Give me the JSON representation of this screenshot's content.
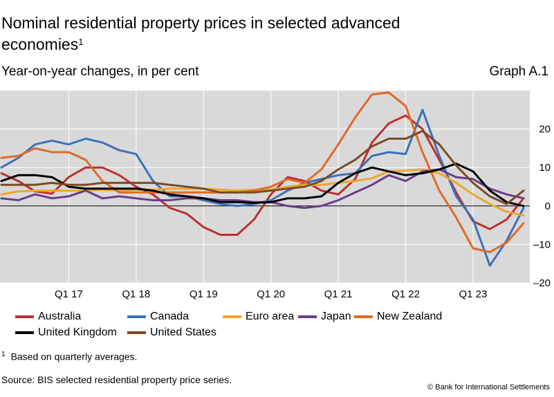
{
  "title": "Nominal residential property prices in selected advanced economies",
  "title_footnote_marker": "1",
  "subtitle": "Year-on-year changes, in per cent",
  "graph_id": "Graph A.1",
  "footnote_marker": "1",
  "footnote": "Based on quarterly averages.",
  "source": "Source: BIS selected residential property price series.",
  "copyright": "© Bank for International Settlements",
  "chart_data": {
    "type": "line",
    "x": [
      "Q1 16",
      "Q2 16",
      "Q3 16",
      "Q4 16",
      "Q1 17",
      "Q2 17",
      "Q3 17",
      "Q4 17",
      "Q1 18",
      "Q2 18",
      "Q3 18",
      "Q4 18",
      "Q1 19",
      "Q2 19",
      "Q3 19",
      "Q4 19",
      "Q1 20",
      "Q2 20",
      "Q3 20",
      "Q4 20",
      "Q1 21",
      "Q2 21",
      "Q3 21",
      "Q4 21",
      "Q1 22",
      "Q2 22",
      "Q3 22",
      "Q4 22",
      "Q1 23",
      "Q2 23",
      "Q3 23",
      "Q4 23"
    ],
    "xtick_labels": [
      "Q1 17",
      "Q1 18",
      "Q1 19",
      "Q1 20",
      "Q1 21",
      "Q1 22",
      "Q1 23"
    ],
    "xtick_positions": [
      4,
      8,
      12,
      16,
      20,
      24,
      28
    ],
    "yticks": [
      20,
      10,
      0,
      -10,
      -20
    ],
    "ylim": [
      -20,
      30
    ],
    "grid": true,
    "legend_position": "bottom",
    "series": [
      {
        "name": "Australia",
        "color": "#bf2f2f",
        "values": [
          8.5,
          6.5,
          3.8,
          3.2,
          7.5,
          10,
          10,
          8,
          5,
          3,
          -0.5,
          -2,
          -5.5,
          -7.5,
          -7.5,
          -3.5,
          3,
          7.5,
          6.5,
          4,
          3,
          7,
          16.5,
          21.5,
          23.5,
          20,
          12,
          3.5,
          -4,
          -6,
          -3.5,
          2
        ]
      },
      {
        "name": "Canada",
        "color": "#3a72b8",
        "values": [
          10,
          12.5,
          16,
          17,
          16,
          17.5,
          16.5,
          14.5,
          13.5,
          6.5,
          2.5,
          2.5,
          1.5,
          0.5,
          0,
          0.5,
          1.5,
          4,
          6,
          7,
          8,
          8.5,
          13,
          14,
          13.5,
          25,
          13,
          2.5,
          -3.5,
          -15.5,
          -9,
          -0.5
        ]
      },
      {
        "name": "Euro area",
        "color": "#f0a52a",
        "values": [
          3,
          3.8,
          4,
          4,
          4,
          4,
          4.2,
          4,
          4.2,
          4.2,
          4.5,
          4.5,
          4.5,
          4.2,
          4,
          4.2,
          4.2,
          5,
          5.5,
          5.5,
          6,
          6.5,
          7.2,
          9,
          9.2,
          9.5,
          8.5,
          6,
          3,
          0.5,
          -1.5,
          -2.5
        ]
      },
      {
        "name": "Japan",
        "color": "#6b3c8c",
        "values": [
          2,
          1.5,
          3,
          2,
          2.5,
          4,
          2,
          2.5,
          2,
          1.5,
          1.5,
          2,
          2,
          1.5,
          1.5,
          1,
          1,
          0,
          -0.5,
          0,
          1.5,
          3.5,
          5.5,
          8,
          6.5,
          9,
          9.5,
          7.5,
          7,
          4.5,
          3,
          2
        ]
      },
      {
        "name": "New Zealand",
        "color": "#e06a25",
        "values": [
          12.5,
          13,
          15,
          14,
          14,
          12,
          6.5,
          3.5,
          3.5,
          3.5,
          3.5,
          3.5,
          3.5,
          3.5,
          3.5,
          4,
          5,
          7,
          6,
          9.5,
          16,
          23,
          29,
          29.5,
          26,
          14,
          4,
          -3,
          -11,
          -12,
          -9.5,
          -4.5
        ]
      },
      {
        "name": "United Kingdom",
        "color": "#000000",
        "values": [
          6.5,
          8,
          8,
          7.5,
          5,
          4.5,
          4.5,
          4.5,
          4.5,
          4,
          3,
          2.5,
          2,
          1,
          1,
          0.8,
          1,
          2,
          2,
          2.5,
          6,
          8.5,
          10,
          9,
          8,
          8.5,
          9.5,
          11,
          9,
          4,
          1,
          0
        ]
      },
      {
        "name": "United States",
        "color": "#7a4b26",
        "values": [
          5.5,
          5.5,
          5.5,
          6,
          5.5,
          5.5,
          6,
          6,
          6,
          6,
          5.5,
          5,
          4.5,
          3.5,
          3.5,
          3.5,
          4,
          4.5,
          5,
          6.5,
          9.5,
          12,
          15.5,
          17.5,
          17.5,
          19.5,
          16,
          10.5,
          6,
          2.5,
          0.5,
          4
        ]
      }
    ]
  }
}
